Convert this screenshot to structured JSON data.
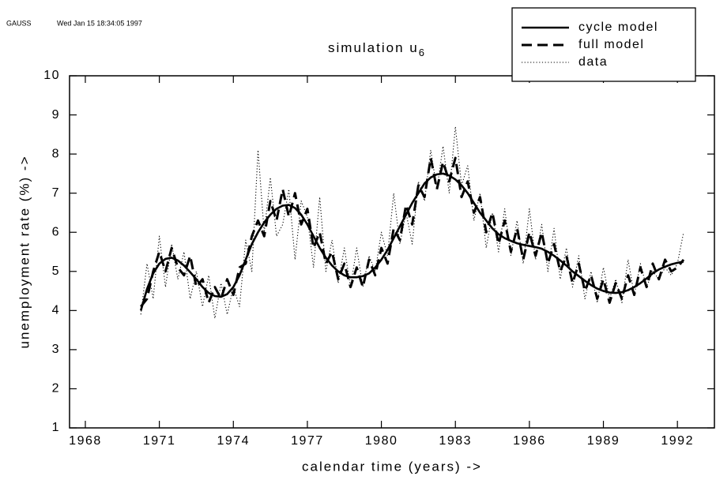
{
  "chart_data": {
    "type": "line",
    "header": "GAUSS",
    "timestamp": "Wed Jan 15 18:34:05 1997",
    "title": "simulation u",
    "title_subscript": "6",
    "x_label": "calendar time (years)  ->",
    "y_label": "unemployment rate (%)  ->",
    "xlim": [
      1967.36,
      1993.5
    ],
    "xticks": [
      1968,
      1971,
      1974,
      1977,
      1980,
      1983,
      1986,
      1989,
      1992
    ],
    "ylim": [
      1,
      10
    ],
    "yticks": [
      1,
      2,
      3,
      4,
      5,
      6,
      7,
      8,
      9,
      10
    ],
    "legend": "top-right",
    "x": [
      1970.25,
      1970.5,
      1970.75,
      1971,
      1971.25,
      1971.5,
      1971.75,
      1972,
      1972.25,
      1972.5,
      1972.75,
      1973,
      1973.25,
      1973.5,
      1973.75,
      1974,
      1974.25,
      1974.5,
      1974.75,
      1975,
      1975.25,
      1975.5,
      1975.75,
      1976,
      1976.25,
      1976.5,
      1976.75,
      1977,
      1977.25,
      1977.5,
      1977.75,
      1978,
      1978.25,
      1978.5,
      1978.75,
      1979,
      1979.25,
      1979.5,
      1979.75,
      1980,
      1980.25,
      1980.5,
      1980.75,
      1981,
      1981.25,
      1981.5,
      1981.75,
      1982,
      1982.25,
      1982.5,
      1982.75,
      1983,
      1983.25,
      1983.5,
      1983.75,
      1984,
      1984.25,
      1984.5,
      1984.75,
      1985,
      1985.25,
      1985.5,
      1985.75,
      1986,
      1986.25,
      1986.5,
      1986.75,
      1987,
      1987.25,
      1987.5,
      1987.75,
      1988,
      1988.25,
      1988.5,
      1988.75,
      1989,
      1989.25,
      1989.5,
      1989.75,
      1990,
      1990.25,
      1990.5,
      1990.75,
      1991,
      1991.25,
      1991.5,
      1991.75,
      1992,
      1992.25
    ],
    "series": [
      {
        "name": "cycle model",
        "color": "#000000",
        "style": "solid",
        "values": [
          4.0,
          4.55,
          4.95,
          5.2,
          5.32,
          5.35,
          5.28,
          5.15,
          4.98,
          4.8,
          4.6,
          4.45,
          4.37,
          4.35,
          4.42,
          4.6,
          4.9,
          5.3,
          5.7,
          6.0,
          6.25,
          6.45,
          6.6,
          6.68,
          6.7,
          6.62,
          6.45,
          6.2,
          5.9,
          5.6,
          5.35,
          5.15,
          5.0,
          4.9,
          4.85,
          4.85,
          4.88,
          4.95,
          5.1,
          5.3,
          5.55,
          5.85,
          6.15,
          6.45,
          6.75,
          7.0,
          7.25,
          7.4,
          7.48,
          7.5,
          7.45,
          7.35,
          7.2,
          7.0,
          6.75,
          6.5,
          6.3,
          6.1,
          5.95,
          5.85,
          5.78,
          5.72,
          5.68,
          5.65,
          5.62,
          5.58,
          5.5,
          5.4,
          5.28,
          5.15,
          5.0,
          4.88,
          4.76,
          4.65,
          4.56,
          4.5,
          4.46,
          4.45,
          4.47,
          4.52,
          4.6,
          4.7,
          4.82,
          4.95,
          5.05,
          5.12,
          5.18,
          5.22,
          5.25
        ]
      },
      {
        "name": "full model",
        "color": "#000000",
        "style": "dashed",
        "values": [
          4.1,
          4.3,
          5.0,
          5.5,
          5.0,
          5.6,
          5.1,
          4.9,
          5.4,
          4.6,
          4.8,
          4.2,
          4.6,
          4.3,
          4.8,
          4.4,
          5.1,
          5.2,
          5.9,
          6.3,
          5.9,
          6.8,
          6.3,
          7.1,
          6.4,
          7.0,
          6.2,
          6.6,
          5.6,
          6.0,
          5.2,
          5.5,
          4.8,
          5.2,
          4.6,
          5.1,
          4.6,
          5.3,
          4.9,
          5.6,
          5.2,
          6.1,
          5.8,
          6.7,
          6.2,
          7.2,
          6.9,
          7.9,
          7.1,
          7.8,
          7.3,
          7.9,
          6.9,
          7.3,
          6.5,
          6.9,
          6.0,
          6.5,
          5.7,
          6.3,
          5.5,
          6.1,
          5.3,
          6.0,
          5.4,
          6.0,
          5.2,
          5.7,
          5.0,
          5.4,
          4.7,
          5.2,
          4.5,
          4.9,
          4.3,
          4.8,
          4.2,
          4.7,
          4.3,
          4.9,
          4.4,
          5.1,
          4.6,
          5.2,
          4.8,
          5.3,
          5.0,
          5.1,
          5.3
        ]
      },
      {
        "name": "data",
        "color": "#000000",
        "style": "dotted",
        "values": [
          3.9,
          5.2,
          4.3,
          5.9,
          4.6,
          5.7,
          4.8,
          5.5,
          4.3,
          5.0,
          4.1,
          4.9,
          3.8,
          4.7,
          3.9,
          4.6,
          4.1,
          5.8,
          5.0,
          8.1,
          6.0,
          7.4,
          5.9,
          6.2,
          7.1,
          5.3,
          6.8,
          6.4,
          5.1,
          6.9,
          5.0,
          5.8,
          4.7,
          5.6,
          4.6,
          5.6,
          4.6,
          5.4,
          5.0,
          6.0,
          5.4,
          7.0,
          5.7,
          6.5,
          5.7,
          7.3,
          6.8,
          8.1,
          7.1,
          8.2,
          7.0,
          8.7,
          7.2,
          7.7,
          6.3,
          7.0,
          5.6,
          6.5,
          5.5,
          6.6,
          5.4,
          6.3,
          5.2,
          6.6,
          5.3,
          6.2,
          5.0,
          6.1,
          4.8,
          5.6,
          4.6,
          5.4,
          4.3,
          5.0,
          4.2,
          5.1,
          4.3,
          4.8,
          4.2,
          5.3,
          4.4,
          5.2,
          4.6,
          5.0,
          4.8,
          5.1,
          4.9,
          5.2,
          6.0
        ]
      }
    ]
  }
}
